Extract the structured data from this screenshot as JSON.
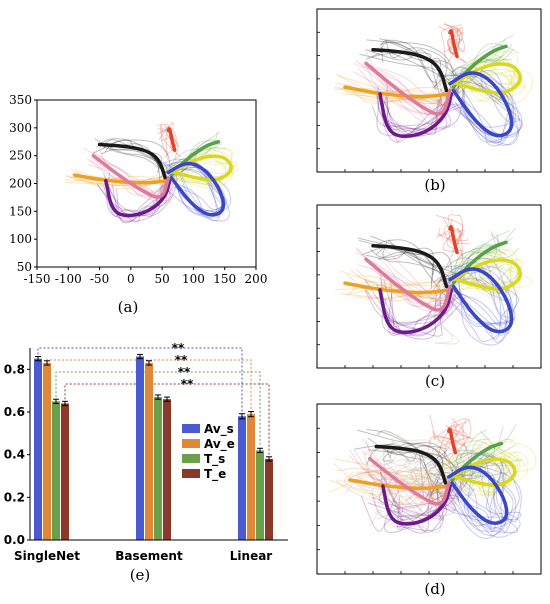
{
  "panels": {
    "a": {
      "caption": "(a)",
      "x_ticks": [
        "-150",
        "-100",
        "-50",
        "0",
        "50",
        "100",
        "150",
        "200"
      ],
      "y_ticks": [
        "50",
        "100",
        "150",
        "200",
        "250",
        "300",
        "350"
      ]
    },
    "b": {
      "caption": "(b)"
    },
    "c": {
      "caption": "(c)"
    },
    "d": {
      "caption": "(d)"
    },
    "e": {
      "caption": "(e)"
    }
  },
  "colors": {
    "black": "#1a1a1a",
    "grey": "#9a9a9a",
    "red": "#e0442a",
    "green": "#5aa04a",
    "yellow": "#d8d820",
    "orange": "#f0a020",
    "blue": "#3a46c8",
    "purple": "#6a1a8a",
    "pink": "#e07a9a",
    "lavender": "#b89ad8"
  },
  "chart_data": [
    {
      "type": "line",
      "panel": "a",
      "xlim": [
        -150,
        200
      ],
      "ylim": [
        50,
        350
      ],
      "series": [
        {
          "color": "black",
          "x": [
            -50,
            -20,
            20,
            45,
            55
          ],
          "y": [
            270,
            268,
            262,
            245,
            210
          ]
        },
        {
          "color": "red",
          "x": [
            60,
            62,
            65,
            70
          ],
          "y": [
            295,
            300,
            280,
            260
          ]
        },
        {
          "color": "green",
          "x": [
            65,
            90,
            120,
            140
          ],
          "y": [
            215,
            245,
            268,
            275
          ]
        },
        {
          "color": "yellow",
          "x": [
            65,
            110,
            150,
            165,
            140,
            110,
            70
          ],
          "y": [
            220,
            248,
            250,
            225,
            205,
            208,
            220
          ]
        },
        {
          "color": "orange",
          "x": [
            -90,
            -40,
            20,
            60
          ],
          "y": [
            215,
            205,
            200,
            205
          ]
        },
        {
          "color": "blue",
          "x": [
            60,
            90,
            120,
            145,
            150,
            125,
            95,
            65
          ],
          "y": [
            220,
            240,
            225,
            185,
            150,
            140,
            165,
            210
          ]
        },
        {
          "color": "purple",
          "x": [
            -40,
            -30,
            -5,
            30,
            55,
            62
          ],
          "y": [
            205,
            150,
            140,
            150,
            175,
            205
          ]
        },
        {
          "color": "pink",
          "x": [
            -60,
            -20,
            20,
            50,
            60
          ],
          "y": [
            250,
            215,
            185,
            170,
            210
          ]
        }
      ]
    },
    {
      "type": "bar",
      "panel": "e",
      "categories": [
        "SingleNet",
        "Basement",
        "Linear"
      ],
      "ylim": [
        0.0,
        0.9
      ],
      "y_ticks": [
        "0.0",
        "0.2",
        "0.4",
        "0.6",
        "0.8"
      ],
      "legend_position": "right",
      "series": [
        {
          "name": "Av_s",
          "color": "#4a5ad0",
          "values": [
            0.85,
            0.86,
            0.58
          ],
          "errors": [
            0.01,
            0.01,
            0.012
          ]
        },
        {
          "name": "Av_e",
          "color": "#e0883a",
          "values": [
            0.83,
            0.83,
            0.59
          ],
          "errors": [
            0.01,
            0.01,
            0.012
          ]
        },
        {
          "name": "T_s",
          "color": "#6aa04a",
          "values": [
            0.65,
            0.67,
            0.42
          ],
          "errors": [
            0.01,
            0.01,
            0.01
          ]
        },
        {
          "name": "T_e",
          "color": "#8a3a2a",
          "values": [
            0.64,
            0.66,
            0.38
          ],
          "errors": [
            0.01,
            0.01,
            0.01
          ]
        }
      ],
      "annotations": [
        "**",
        "**",
        "**",
        "**"
      ]
    }
  ]
}
